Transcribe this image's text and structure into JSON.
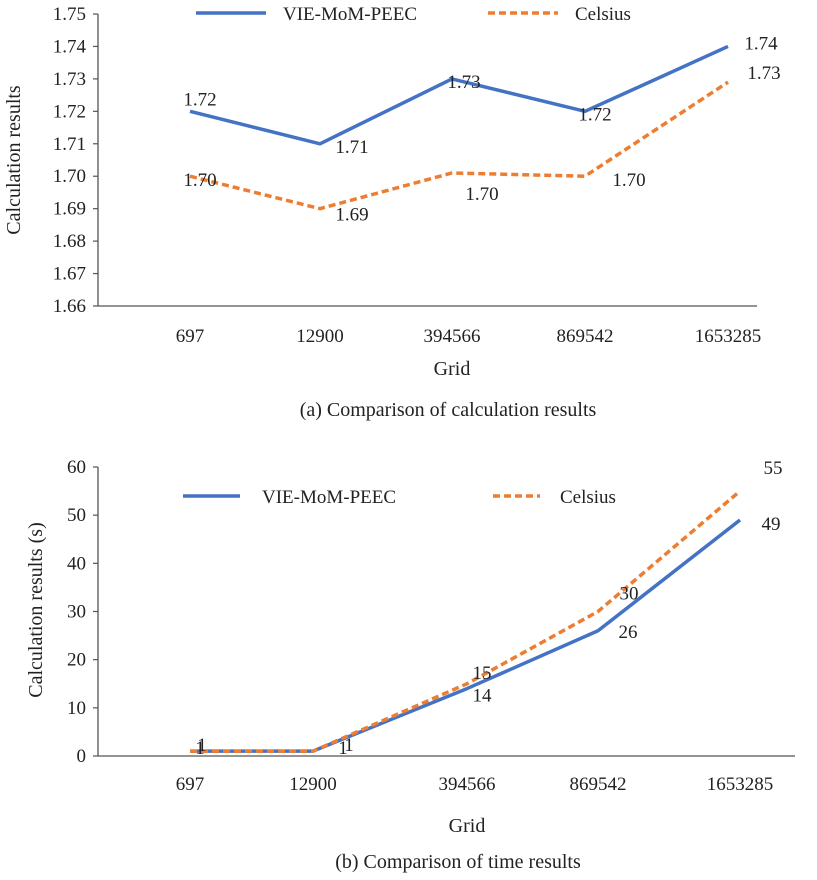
{
  "chart_data": [
    {
      "type": "line",
      "caption": "(a) Comparison of calculation results",
      "xlabel": "Grid",
      "ylabel": "Calculation results",
      "categories": [
        "697",
        "12900",
        "394566",
        "869542",
        "1653285"
      ],
      "ylim": [
        1.66,
        1.75
      ],
      "yticks": [
        "1.66",
        "1.67",
        "1.68",
        "1.69",
        "1.70",
        "1.71",
        "1.72",
        "1.73",
        "1.74",
        "1.75"
      ],
      "legend_position": "top",
      "grid": false,
      "series": [
        {
          "name": "VIE-MoM-PEEC",
          "values": [
            1.72,
            1.71,
            1.73,
            1.72,
            1.74
          ],
          "labels": [
            "1.72",
            "1.71",
            "1.73",
            "1.72",
            "1.74"
          ],
          "color": "#4472C4",
          "style": "solid"
        },
        {
          "name": "Celsius",
          "values": [
            1.7,
            1.69,
            1.701,
            1.7,
            1.729
          ],
          "labels": [
            "1.70",
            "1.69",
            "1.70",
            "1.70",
            "1.73"
          ],
          "color": "#ED7D31",
          "style": "dashed"
        }
      ]
    },
    {
      "type": "line",
      "caption": "(b) Comparison of time results",
      "xlabel": "Grid",
      "ylabel": "Calculation results (s)",
      "categories": [
        "697",
        "12900",
        "394566",
        "869542",
        "1653285"
      ],
      "ylim": [
        0,
        60
      ],
      "yticks": [
        "0",
        "10",
        "20",
        "30",
        "40",
        "50",
        "60"
      ],
      "legend_position": "top",
      "grid": false,
      "series": [
        {
          "name": "VIE-MoM-PEEC",
          "values": [
            1,
            1,
            14,
            26,
            49
          ],
          "labels": [
            "1",
            "1",
            "14",
            "26",
            "49"
          ],
          "color": "#4472C4",
          "style": "solid"
        },
        {
          "name": "Celsius",
          "values": [
            1,
            1,
            15,
            30,
            55
          ],
          "labels": [
            "1",
            "1",
            "15",
            "30",
            "55"
          ],
          "color": "#ED7D31",
          "style": "dashed"
        }
      ]
    }
  ]
}
